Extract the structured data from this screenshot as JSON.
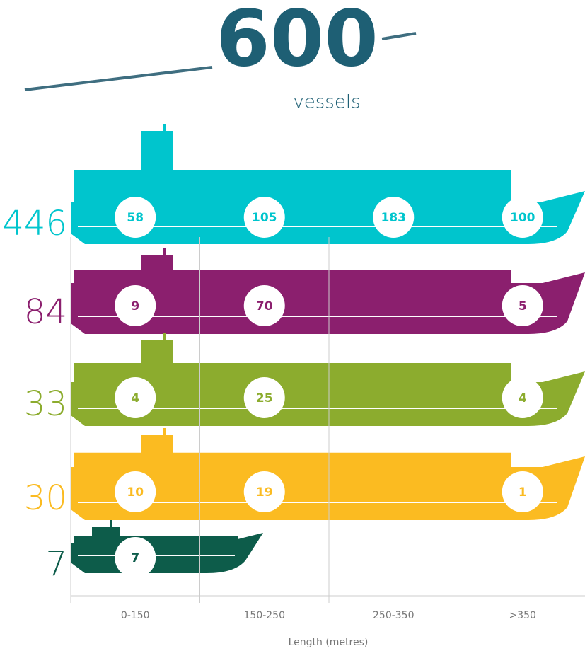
{
  "chart_data": {
    "type": "ship-rows",
    "title": "600",
    "subtitle": "vessels",
    "categories": [
      "0-150",
      "150-250",
      "250-350",
      ">350"
    ],
    "xlabel": "Length (metres)",
    "series": [
      {
        "total": 446,
        "color": "#00c5cd",
        "values": [
          58,
          105,
          183,
          100
        ]
      },
      {
        "total": 84,
        "color": "#8b1f6e",
        "values": [
          9,
          70,
          null,
          5
        ]
      },
      {
        "total": 33,
        "color": "#8cac2e",
        "values": [
          4,
          25,
          null,
          4
        ]
      },
      {
        "total": 30,
        "color": "#fbbb21",
        "values": [
          10,
          19,
          null,
          1
        ]
      },
      {
        "total": 7,
        "color": "#0d5c4a",
        "values": [
          7,
          null,
          null,
          null
        ]
      }
    ],
    "title_color": "#1e5f74",
    "grid": true
  }
}
